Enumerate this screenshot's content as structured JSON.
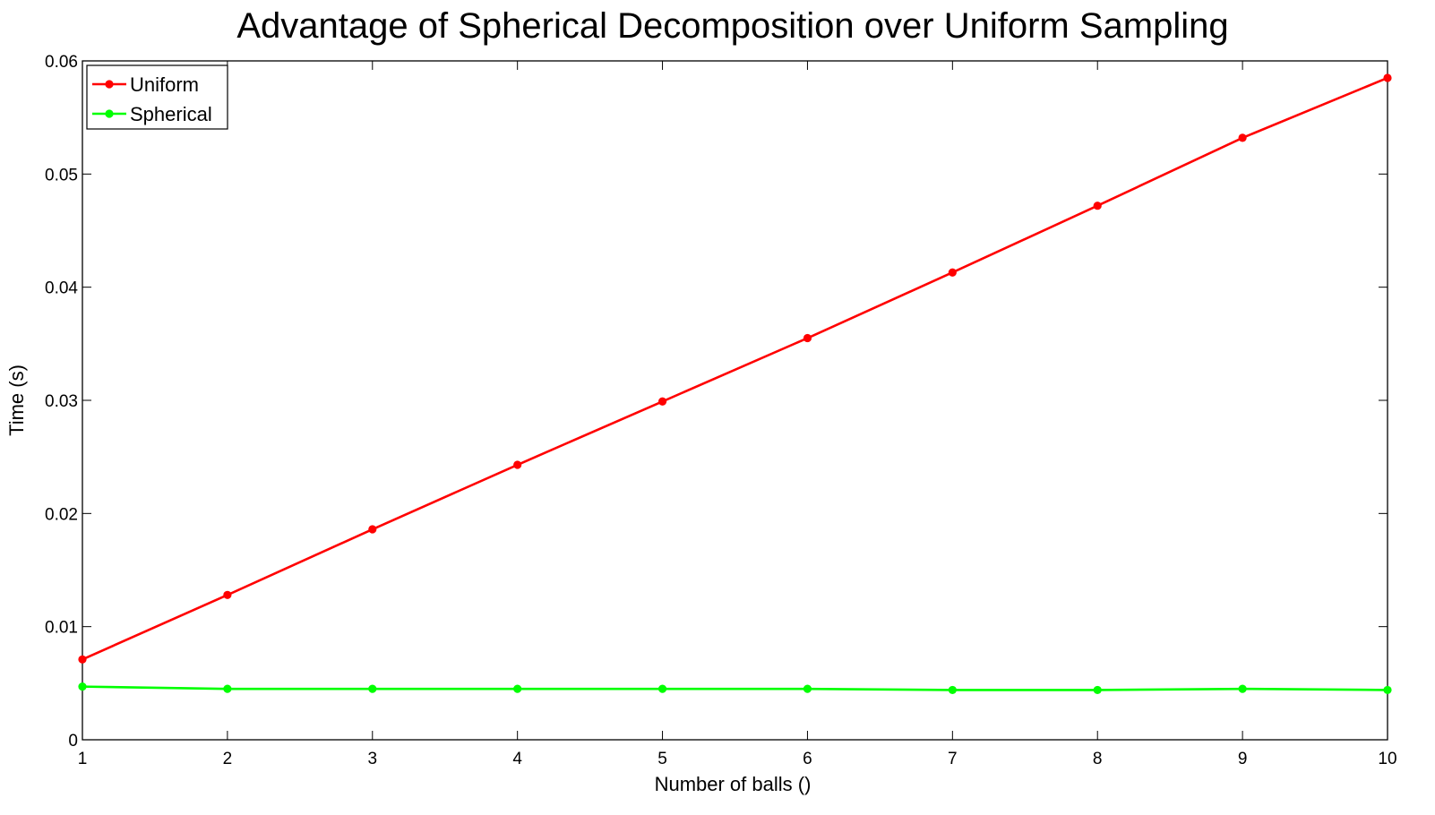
{
  "chart_data": {
    "type": "line",
    "title": "Advantage of Spherical Decomposition over Uniform Sampling",
    "xlabel": "Number of balls ()",
    "ylabel": "Time (s)",
    "xlim": [
      1,
      10
    ],
    "ylim": [
      0,
      0.06
    ],
    "grid": false,
    "legend_position": "top-left",
    "x": [
      1,
      2,
      3,
      4,
      5,
      6,
      7,
      8,
      9,
      10
    ],
    "x_tick_labels": [
      "1",
      "2",
      "3",
      "4",
      "5",
      "6",
      "7",
      "8",
      "9",
      "10"
    ],
    "y_ticks": [
      0,
      0.01,
      0.02,
      0.03,
      0.04,
      0.05,
      0.06
    ],
    "y_tick_labels": [
      "0",
      "0.01",
      "0.02",
      "0.03",
      "0.04",
      "0.05",
      "0.06"
    ],
    "series": [
      {
        "name": "Uniform",
        "color": "#ff0000",
        "marker": "dot",
        "values": [
          0.0071,
          0.0128,
          0.0186,
          0.0243,
          0.0299,
          0.0355,
          0.0413,
          0.0472,
          0.0532,
          0.0585
        ]
      },
      {
        "name": "Spherical",
        "color": "#00ff00",
        "marker": "dot",
        "values": [
          0.0047,
          0.0045,
          0.0045,
          0.0045,
          0.0045,
          0.0045,
          0.0044,
          0.0044,
          0.0045,
          0.0044
        ]
      }
    ]
  }
}
